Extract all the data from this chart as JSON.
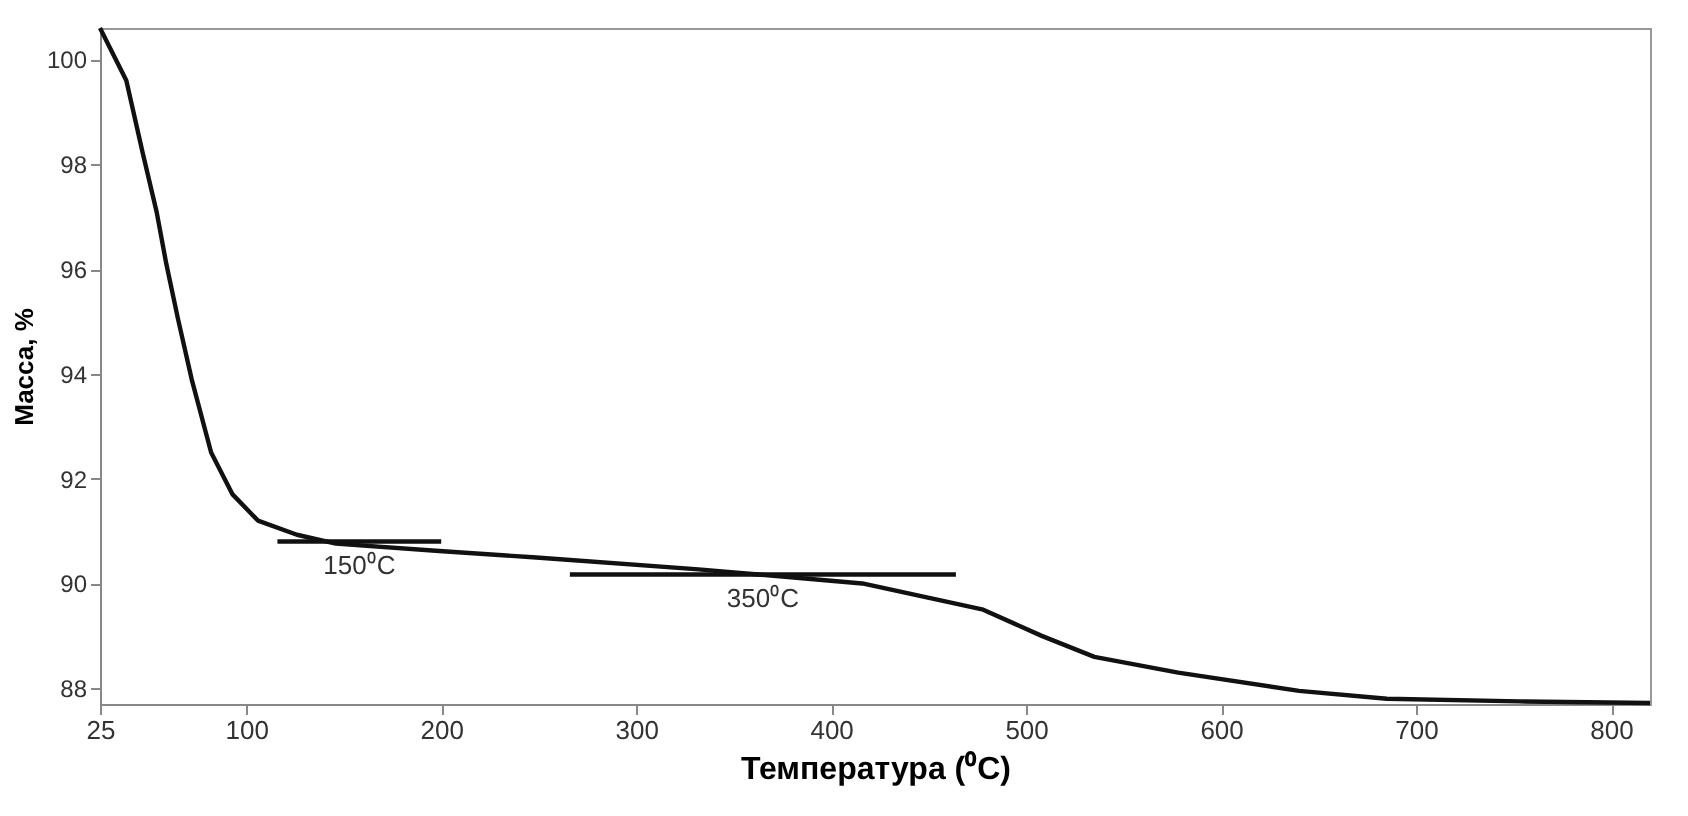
{
  "chart_data": {
    "type": "line",
    "xlabel": "Температура (⁰C)",
    "ylabel": "Масса, %",
    "xlim": [
      25,
      820
    ],
    "ylim": [
      87.7,
      100.6
    ],
    "xticks": [
      25,
      100,
      200,
      300,
      400,
      500,
      600,
      700,
      800
    ],
    "yticks": [
      88,
      90,
      92,
      94,
      96,
      98,
      100
    ],
    "grid": false,
    "marker": "none",
    "line_style": "solid",
    "series": [
      {
        "color": "#111111",
        "x": [
          25,
          38.5,
          47,
          54,
          59,
          65,
          72,
          82,
          93,
          106,
          126,
          146,
          199,
          247,
          332,
          416,
          478,
          508,
          535,
          578,
          640,
          685,
          753,
          820
        ],
        "values": [
          100.6,
          99.6,
          98.2,
          97.1,
          96.1,
          95.05,
          93.9,
          92.5,
          91.7,
          91.2,
          90.93,
          90.76,
          90.62,
          90.5,
          90.27,
          90.0,
          89.5,
          89.0,
          88.6,
          88.3,
          87.95,
          87.8,
          87.75,
          87.72
        ]
      },
      {
        "color": "#111111",
        "x": [
          116,
          200
        ],
        "values": [
          90.8,
          90.8
        ]
      },
      {
        "color": "#111111",
        "x": [
          266,
          464
        ],
        "values": [
          90.17,
          90.17
        ]
      }
    ],
    "annotations": [
      "150⁰C",
      "350⁰C"
    ]
  }
}
